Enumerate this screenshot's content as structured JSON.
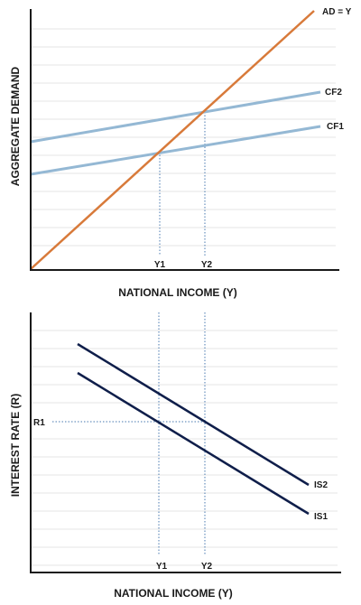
{
  "top_chart": {
    "ylabel": "AGGREGATE DEMAND",
    "xlabel": "NATIONAL INCOME (Y)",
    "lines": {
      "ad": {
        "label": "AD = Y",
        "color": "#d87a3a"
      },
      "cf2": {
        "label": "CF2",
        "color": "#94b8d4"
      },
      "cf1": {
        "label": "CF1",
        "color": "#94b8d4"
      }
    },
    "ticks": {
      "y1": "Y1",
      "y2": "Y2"
    }
  },
  "bottom_chart": {
    "ylabel": "INTEREST RATE (R)",
    "xlabel": "NATIONAL INCOME (Y)",
    "lines": {
      "is2": {
        "label": "IS2",
        "color": "#0f1e4a"
      },
      "is1": {
        "label": "IS1",
        "color": "#0f1e4a"
      }
    },
    "ticks": {
      "y1": "Y1",
      "y2": "Y2",
      "r1": "R1"
    }
  },
  "colors": {
    "grid": "#e4e4e4",
    "axis": "#1a1a1a",
    "guide": "#4a7ab0"
  }
}
